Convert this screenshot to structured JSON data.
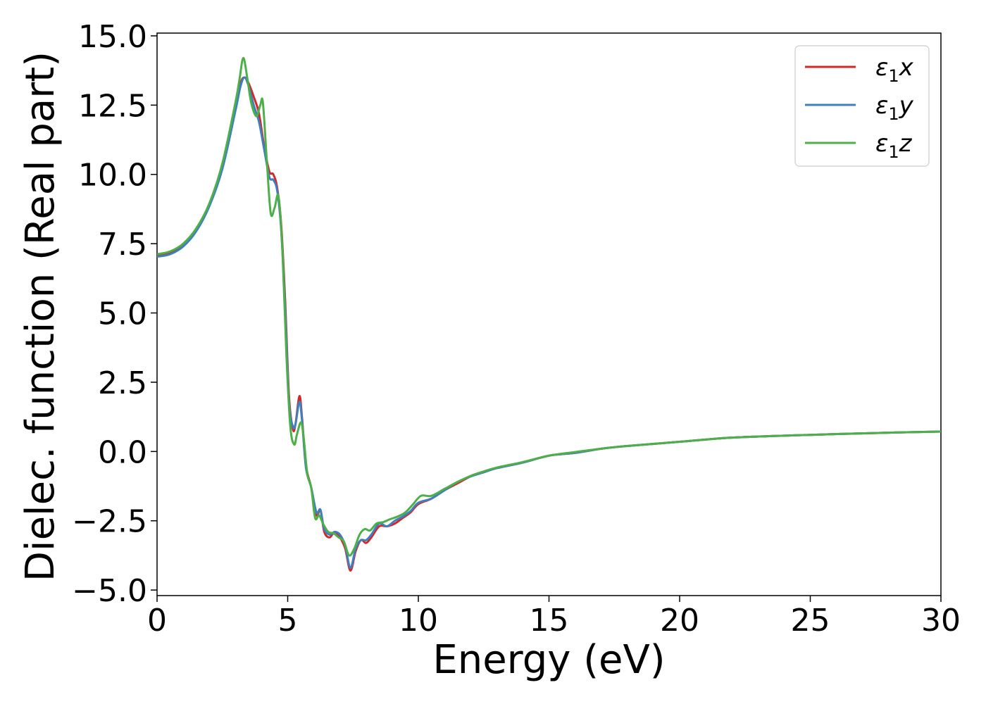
{
  "chart_data": {
    "type": "line",
    "xlabel": "Energy (eV)",
    "ylabel": "Dielec. function (Real part)",
    "xlim": [
      0,
      30
    ],
    "ylim": [
      -5.2,
      15.1
    ],
    "xticks": [
      0,
      5,
      10,
      15,
      20,
      25,
      30
    ],
    "yticks": [
      -5.0,
      -2.5,
      0.0,
      2.5,
      5.0,
      7.5,
      10.0,
      12.5,
      15.0
    ],
    "xtick_labels": [
      "0",
      "5",
      "10",
      "15",
      "20",
      "25",
      "30"
    ],
    "ytick_labels": [
      "−5.0",
      "−2.5",
      "0.0",
      "2.5",
      "5.0",
      "7.5",
      "10.0",
      "12.5",
      "15.0"
    ],
    "grid": false,
    "legend_position": "top-right",
    "series": [
      {
        "name": "ε₁x",
        "legend_main": "ε",
        "legend_sub": "1",
        "legend_var": "x",
        "color": "#d62728",
        "x": [
          0,
          0.5,
          1,
          1.5,
          2,
          2.5,
          3,
          3.2,
          3.35,
          3.5,
          3.7,
          3.9,
          4.1,
          4.3,
          4.45,
          4.6,
          4.75,
          4.9,
          5.05,
          5.2,
          5.3,
          5.45,
          5.55,
          5.7,
          5.9,
          6.1,
          6.25,
          6.4,
          6.6,
          6.8,
          7.0,
          7.2,
          7.4,
          7.6,
          7.8,
          8.0,
          8.2,
          8.5,
          8.8,
          9.1,
          9.4,
          9.7,
          10,
          10.5,
          11,
          11.5,
          12,
          12.5,
          13,
          14,
          15,
          16,
          17,
          18,
          20,
          22,
          25,
          28,
          30
        ],
        "y": [
          7.05,
          7.15,
          7.45,
          8.0,
          8.9,
          10.3,
          12.4,
          13.3,
          13.5,
          13.3,
          12.8,
          12.2,
          11.0,
          10.1,
          10.0,
          9.5,
          8.2,
          5.5,
          2.0,
          0.8,
          1.0,
          2.0,
          1.2,
          -0.5,
          -1.3,
          -2.3,
          -2.1,
          -2.9,
          -3.1,
          -2.9,
          -3.1,
          -3.5,
          -4.3,
          -3.6,
          -3.2,
          -3.3,
          -3.1,
          -2.7,
          -2.7,
          -2.6,
          -2.4,
          -2.2,
          -1.9,
          -1.7,
          -1.4,
          -1.15,
          -0.9,
          -0.75,
          -0.6,
          -0.4,
          -0.15,
          -0.05,
          0.1,
          0.2,
          0.35,
          0.5,
          0.6,
          0.68,
          0.72
        ]
      },
      {
        "name": "ε₁y",
        "legend_main": "ε",
        "legend_sub": "1",
        "legend_var": "y",
        "color": "#3f7fc0",
        "x": [
          0,
          0.5,
          1,
          1.5,
          2,
          2.5,
          3,
          3.2,
          3.35,
          3.5,
          3.7,
          3.9,
          4.1,
          4.3,
          4.45,
          4.6,
          4.75,
          4.9,
          5.05,
          5.2,
          5.3,
          5.45,
          5.55,
          5.7,
          5.9,
          6.1,
          6.25,
          6.4,
          6.6,
          6.8,
          7.0,
          7.2,
          7.4,
          7.6,
          7.8,
          8.0,
          8.2,
          8.5,
          8.8,
          9.1,
          9.4,
          9.7,
          10,
          10.5,
          11,
          11.5,
          12,
          12.5,
          13,
          14,
          15,
          16,
          17,
          18,
          20,
          22,
          25,
          28,
          30
        ],
        "y": [
          7.03,
          7.12,
          7.4,
          7.95,
          8.85,
          10.2,
          12.3,
          13.2,
          13.5,
          13.2,
          12.5,
          11.9,
          10.9,
          9.9,
          9.8,
          9.4,
          8.0,
          5.2,
          1.8,
          0.9,
          1.0,
          1.8,
          1.1,
          -0.6,
          -1.3,
          -2.2,
          -2.1,
          -2.8,
          -3.0,
          -2.9,
          -3.0,
          -3.4,
          -4.2,
          -3.5,
          -3.2,
          -3.2,
          -3.0,
          -2.6,
          -2.7,
          -2.5,
          -2.35,
          -2.15,
          -1.85,
          -1.7,
          -1.4,
          -1.1,
          -0.9,
          -0.75,
          -0.6,
          -0.4,
          -0.15,
          -0.05,
          0.1,
          0.2,
          0.35,
          0.5,
          0.6,
          0.68,
          0.72
        ]
      },
      {
        "name": "ε₁z",
        "legend_main": "ε",
        "legend_sub": "1",
        "legend_var": "z",
        "color": "#4daf4a",
        "x": [
          0,
          0.5,
          1,
          1.5,
          2,
          2.5,
          3,
          3.15,
          3.3,
          3.45,
          3.6,
          3.8,
          3.95,
          4.05,
          4.2,
          4.35,
          4.5,
          4.65,
          4.8,
          4.95,
          5.1,
          5.25,
          5.35,
          5.5,
          5.6,
          5.75,
          5.9,
          6.05,
          6.2,
          6.35,
          6.55,
          6.75,
          6.95,
          7.15,
          7.35,
          7.55,
          7.75,
          7.95,
          8.15,
          8.4,
          8.65,
          8.9,
          9.2,
          9.5,
          9.8,
          10.1,
          10.5,
          11,
          11.5,
          12,
          12.5,
          13,
          14,
          15,
          16,
          17,
          18,
          20,
          22,
          25,
          28,
          30
        ],
        "y": [
          7.12,
          7.22,
          7.5,
          8.05,
          8.95,
          10.4,
          12.6,
          13.4,
          14.2,
          13.5,
          12.6,
          12.1,
          12.5,
          12.6,
          10.5,
          8.6,
          8.8,
          9.2,
          7.2,
          3.5,
          0.9,
          0.25,
          0.6,
          1.05,
          0.6,
          -0.8,
          -1.3,
          -2.4,
          -2.3,
          -2.6,
          -2.9,
          -2.95,
          -3.1,
          -3.25,
          -3.75,
          -3.5,
          -3.0,
          -2.8,
          -2.85,
          -2.6,
          -2.55,
          -2.45,
          -2.35,
          -2.2,
          -1.9,
          -1.6,
          -1.6,
          -1.35,
          -1.1,
          -0.88,
          -0.72,
          -0.58,
          -0.38,
          -0.15,
          -0.02,
          0.1,
          0.2,
          0.35,
          0.5,
          0.6,
          0.68,
          0.72
        ]
      }
    ]
  }
}
